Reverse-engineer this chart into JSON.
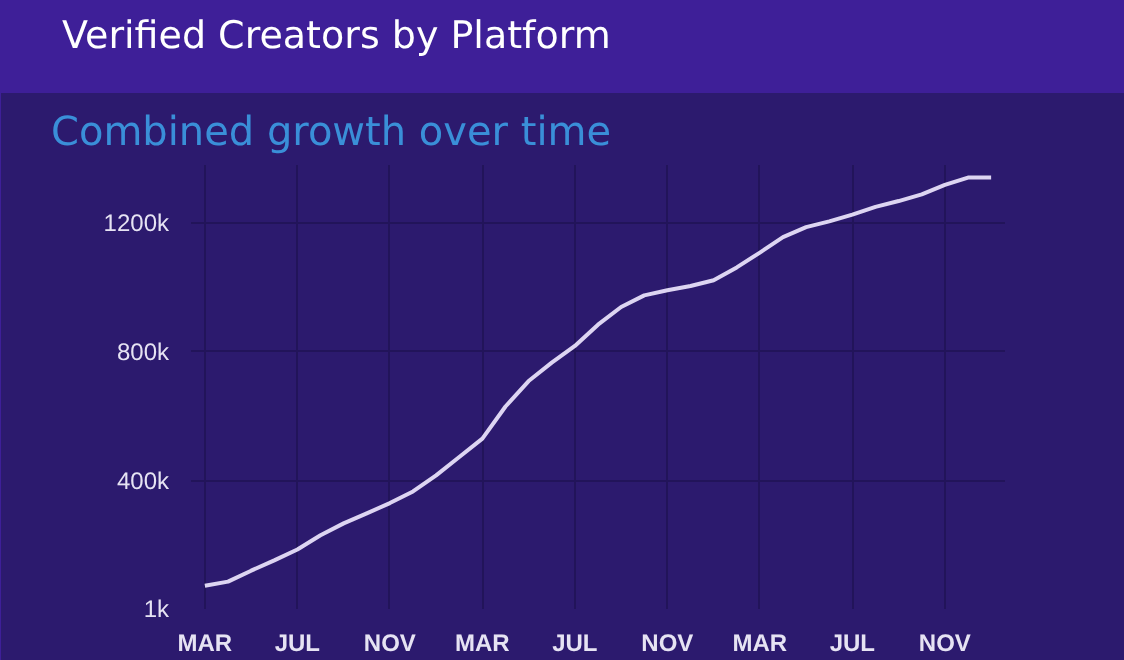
{
  "chart_data": {
    "type": "line",
    "title": "Verified Creators by Platform",
    "subtitle": "Combined growth over time",
    "categories": [
      "MAR",
      null,
      null,
      null,
      "JUL",
      null,
      null,
      null,
      "NOV",
      null,
      null,
      null,
      "MAR",
      null,
      null,
      null,
      "JUL",
      null,
      null,
      null,
      "NOV",
      null,
      null,
      null,
      "MAR",
      null,
      null,
      null,
      "JUL",
      null,
      null,
      null,
      "NOV",
      null,
      null
    ],
    "series": [
      {
        "color": "#ddd5f2",
        "values": [
          73000,
          86000,
          120000,
          152000,
          186000,
          230000,
          267000,
          298000,
          330000,
          366000,
          416000,
          473000,
          530000,
          630000,
          709000,
          766000,
          818000,
          884000,
          939000,
          975000,
          991000,
          1004000,
          1022000,
          1062000,
          1108000,
          1156000,
          1187000,
          1205000,
          1226000,
          1250000,
          1268000,
          1289000,
          1318000,
          1341000,
          1341000
        ]
      }
    ],
    "ylim": [
      1000,
      1380000
    ],
    "yticks": [
      {
        "value": 1000,
        "label": "1k"
      },
      {
        "value": 400000,
        "label": "400k"
      },
      {
        "value": 800000,
        "label": "800k"
      },
      {
        "value": 1200000,
        "label": "1200k"
      }
    ],
    "grid": true,
    "line_style": "solid"
  }
}
